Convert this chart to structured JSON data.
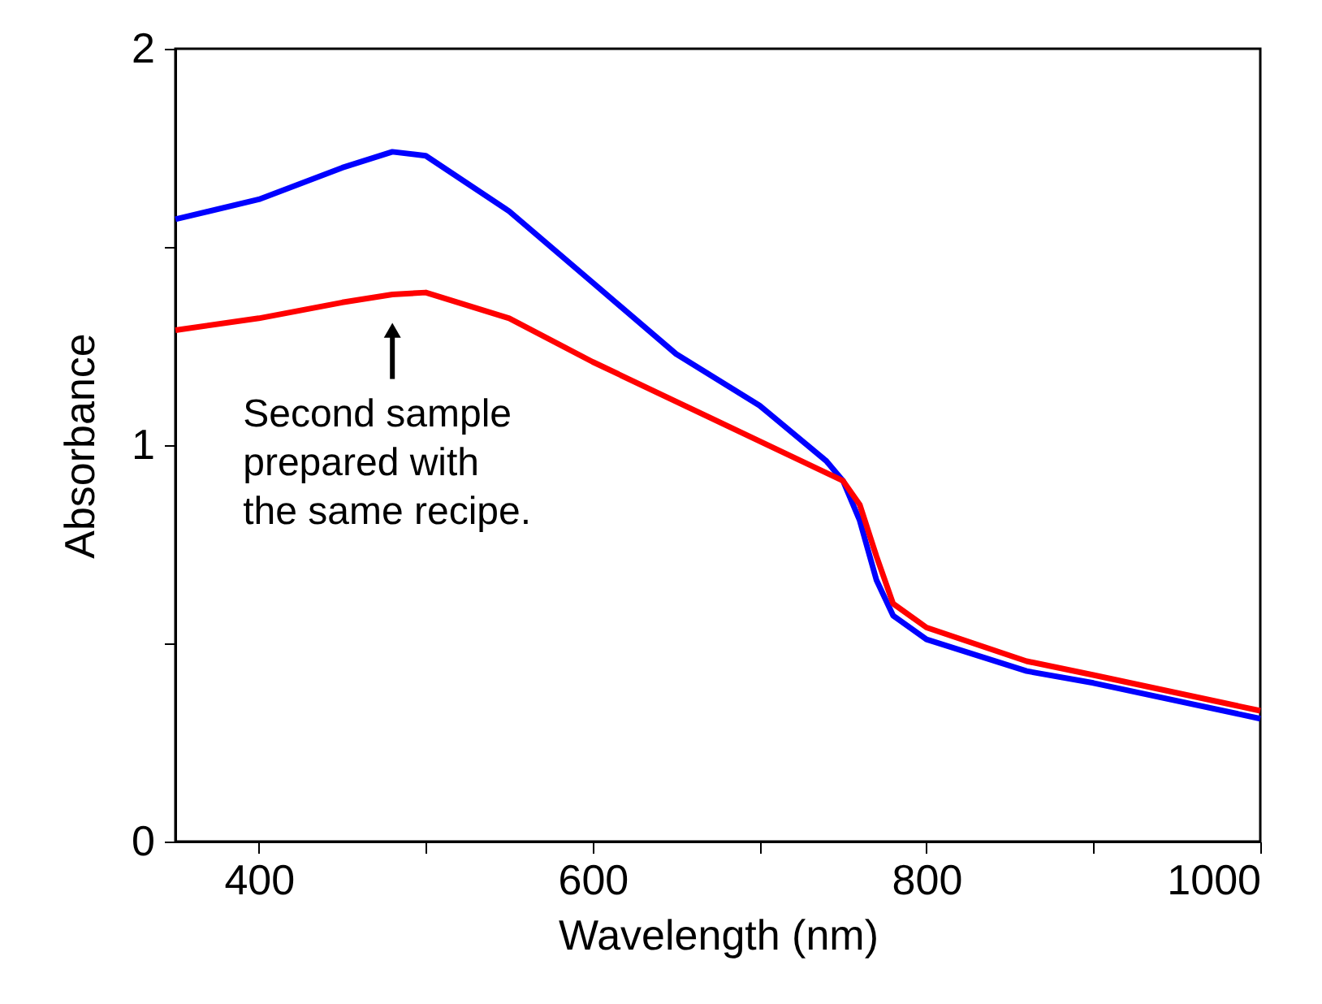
{
  "chart_data": {
    "type": "line",
    "xlabel": "Wavelength (nm)",
    "ylabel": "Absorbance",
    "x": [
      350,
      400,
      450,
      480,
      500,
      550,
      600,
      650,
      700,
      740,
      750,
      760,
      770,
      780,
      800,
      860,
      900,
      1000
    ],
    "series": [
      {
        "color": "#0000ff",
        "values": [
          1.57,
          1.62,
          1.7,
          1.74,
          1.73,
          1.59,
          1.41,
          1.23,
          1.1,
          0.96,
          0.91,
          0.81,
          0.66,
          0.57,
          0.51,
          0.43,
          0.4,
          0.31
        ]
      },
      {
        "color": "#ff0000",
        "values": [
          1.29,
          1.32,
          1.36,
          1.38,
          1.385,
          1.32,
          1.21,
          1.11,
          1.01,
          0.93,
          0.91,
          0.85,
          0.72,
          0.6,
          0.54,
          0.455,
          0.42,
          0.33
        ]
      }
    ],
    "xlim": [
      350,
      1000
    ],
    "ylim": [
      0,
      2
    ],
    "xticks": [
      400,
      {
        "value": 500,
        "label": null
      },
      600,
      {
        "value": 700,
        "label": null
      },
      800,
      {
        "value": 900,
        "label": null
      },
      1000
    ],
    "yticks": [
      0,
      {
        "value": 0.5,
        "label": null
      },
      1,
      {
        "value": 1.5,
        "label": null
      },
      2
    ],
    "grid": false,
    "marker": "none",
    "line_style": "solid",
    "annotations": [
      {
        "text": "Second sample\nprepared with\nthe same recipe.",
        "x": 480,
        "y": 1.38
      }
    ]
  }
}
